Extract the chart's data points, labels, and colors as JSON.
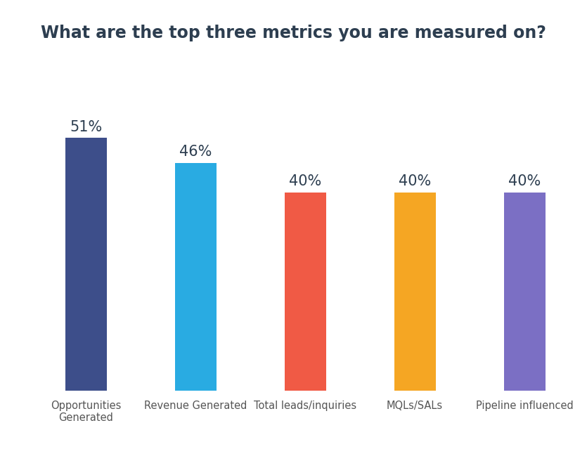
{
  "title": "What are the top three metrics you are measured on?",
  "categories": [
    "Opportunities\nGenerated",
    "Revenue Generated",
    "Total leads/inquiries",
    "MQLs/SALs",
    "Pipeline influenced"
  ],
  "values": [
    51,
    46,
    40,
    40,
    40
  ],
  "bar_colors": [
    "#3d4e8a",
    "#29abe2",
    "#f05a45",
    "#f5a623",
    "#7b6fc4"
  ],
  "label_texts": [
    "51%",
    "46%",
    "40%",
    "40%",
    "40%"
  ],
  "title_color": "#2d3e50",
  "label_color": "#2d3e50",
  "tick_color": "#555555",
  "background_color": "#ffffff",
  "title_fontsize": 17,
  "label_fontsize": 15,
  "tick_fontsize": 10.5,
  "ylim": [
    0,
    68
  ],
  "bar_width": 0.38
}
